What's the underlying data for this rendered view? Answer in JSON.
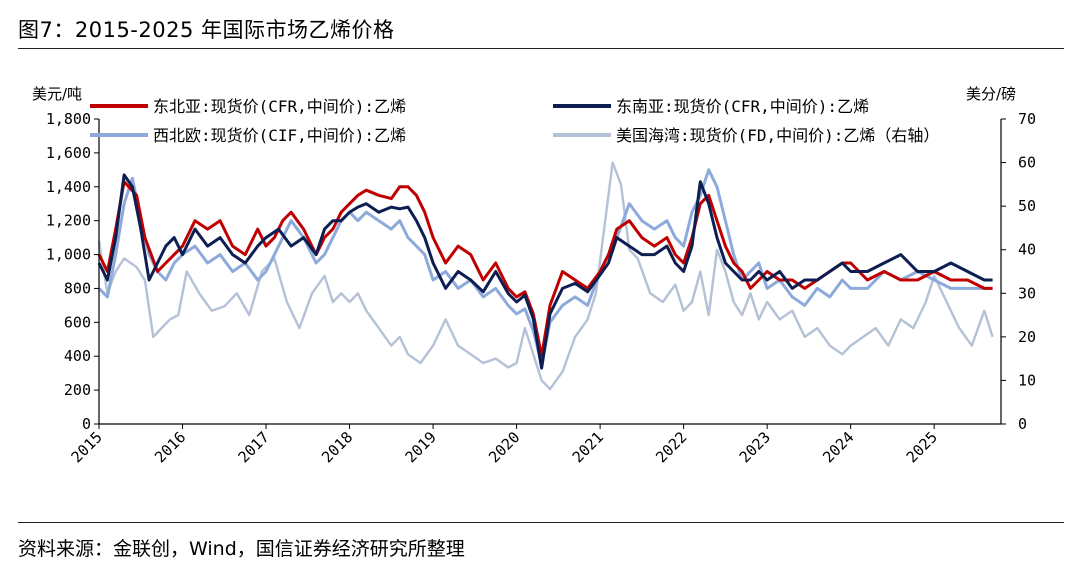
{
  "figure": {
    "title": "图7：2015-2025 年国际市场乙烯价格",
    "source": "资料来源：金联创，Wind，国信证券经济研究所整理"
  },
  "chart_data": {
    "type": "line",
    "left_axis": {
      "unit_label": "美元/吨",
      "range": [
        0,
        1800
      ],
      "ticks": [
        0,
        200,
        400,
        600,
        800,
        1000,
        1200,
        1400,
        1600,
        1800
      ],
      "tick_labels": [
        "0",
        "200",
        "400",
        "600",
        "800",
        "1,000",
        "1,200",
        "1,400",
        "1,600",
        "1,800"
      ]
    },
    "right_axis": {
      "unit_label": "美分/磅",
      "range": [
        0,
        70
      ],
      "ticks": [
        0,
        10,
        20,
        30,
        40,
        50,
        60,
        70
      ],
      "tick_labels": [
        "0",
        "10",
        "20",
        "30",
        "40",
        "50",
        "60",
        "70"
      ]
    },
    "x_axis": {
      "range": [
        2015,
        2025.8
      ],
      "ticks": [
        2015,
        2016,
        2017,
        2018,
        2019,
        2020,
        2021,
        2022,
        2023,
        2024,
        2025
      ],
      "tick_labels": [
        "2015",
        "2016",
        "2017",
        "2018",
        "2019",
        "2020",
        "2021",
        "2022",
        "2023",
        "2024",
        "2025"
      ]
    },
    "grid": false,
    "legend_placement": "top",
    "series": [
      {
        "name": "东北亚:现货价(CFR,中间价):乙烯",
        "axis": "left",
        "color": "#c00000",
        "x": [
          2015.0,
          2015.1,
          2015.2,
          2015.3,
          2015.45,
          2015.55,
          2015.7,
          2015.8,
          2015.9,
          2016.0,
          2016.15,
          2016.3,
          2016.45,
          2016.6,
          2016.75,
          2016.9,
          2017.0,
          2017.1,
          2017.2,
          2017.3,
          2017.45,
          2017.6,
          2017.7,
          2017.8,
          2017.9,
          2018.0,
          2018.1,
          2018.2,
          2018.35,
          2018.5,
          2018.6,
          2018.7,
          2018.8,
          2018.9,
          2019.0,
          2019.15,
          2019.3,
          2019.45,
          2019.6,
          2019.75,
          2019.9,
          2020.0,
          2020.1,
          2020.2,
          2020.3,
          2020.4,
          2020.55,
          2020.7,
          2020.85,
          2021.0,
          2021.1,
          2021.2,
          2021.35,
          2021.5,
          2021.65,
          2021.8,
          2021.9,
          2022.0,
          2022.1,
          2022.2,
          2022.3,
          2022.4,
          2022.5,
          2022.6,
          2022.7,
          2022.8,
          2022.9,
          2023.0,
          2023.15,
          2023.3,
          2023.45,
          2023.6,
          2023.75,
          2023.9,
          2024.0,
          2024.2,
          2024.4,
          2024.6,
          2024.8,
          2025.0,
          2025.2,
          2025.4,
          2025.6,
          2025.7
        ],
        "values": [
          1000,
          900,
          1150,
          1430,
          1350,
          1100,
          900,
          950,
          1000,
          1050,
          1200,
          1150,
          1200,
          1050,
          1000,
          1150,
          1050,
          1100,
          1200,
          1250,
          1150,
          1000,
          1100,
          1150,
          1250,
          1300,
          1350,
          1380,
          1350,
          1330,
          1400,
          1400,
          1350,
          1250,
          1100,
          950,
          1050,
          1000,
          850,
          950,
          800,
          750,
          780,
          650,
          400,
          700,
          900,
          850,
          800,
          900,
          1000,
          1150,
          1200,
          1100,
          1050,
          1100,
          1000,
          950,
          1100,
          1300,
          1350,
          1200,
          1050,
          950,
          900,
          800,
          850,
          900,
          850,
          850,
          800,
          850,
          900,
          950,
          950,
          850,
          900,
          850,
          850,
          900,
          850,
          850,
          800,
          800
        ]
      },
      {
        "name": "东南亚:现货价(CFR,中间价):乙烯",
        "axis": "left",
        "color": "#0d1f52",
        "x": [
          2015.0,
          2015.1,
          2015.2,
          2015.3,
          2015.4,
          2015.5,
          2015.6,
          2015.7,
          2015.8,
          2015.9,
          2016.0,
          2016.15,
          2016.3,
          2016.45,
          2016.6,
          2016.75,
          2016.9,
          2017.0,
          2017.15,
          2017.3,
          2017.45,
          2017.6,
          2017.7,
          2017.8,
          2017.9,
          2018.0,
          2018.1,
          2018.2,
          2018.35,
          2018.5,
          2018.6,
          2018.7,
          2018.8,
          2018.9,
          2019.0,
          2019.15,
          2019.3,
          2019.45,
          2019.6,
          2019.75,
          2019.9,
          2020.0,
          2020.1,
          2020.2,
          2020.3,
          2020.4,
          2020.55,
          2020.7,
          2020.85,
          2021.0,
          2021.1,
          2021.2,
          2021.35,
          2021.5,
          2021.65,
          2021.8,
          2021.9,
          2022.0,
          2022.1,
          2022.2,
          2022.3,
          2022.4,
          2022.5,
          2022.6,
          2022.7,
          2022.8,
          2022.9,
          2023.0,
          2023.15,
          2023.3,
          2023.45,
          2023.6,
          2023.75,
          2023.9,
          2024.0,
          2024.2,
          2024.4,
          2024.6,
          2024.8,
          2025.0,
          2025.2,
          2025.4,
          2025.6,
          2025.7
        ],
        "values": [
          950,
          850,
          1100,
          1470,
          1400,
          1150,
          850,
          950,
          1050,
          1100,
          1000,
          1150,
          1050,
          1100,
          1000,
          950,
          1050,
          1100,
          1150,
          1050,
          1100,
          1000,
          1150,
          1200,
          1200,
          1250,
          1280,
          1300,
          1250,
          1280,
          1270,
          1280,
          1200,
          1100,
          950,
          800,
          900,
          850,
          780,
          900,
          770,
          720,
          760,
          620,
          330,
          650,
          800,
          830,
          780,
          880,
          950,
          1100,
          1050,
          1000,
          1000,
          1050,
          950,
          900,
          1050,
          1430,
          1300,
          1100,
          950,
          900,
          850,
          850,
          900,
          850,
          900,
          800,
          850,
          850,
          900,
          950,
          900,
          900,
          950,
          1000,
          900,
          900,
          950,
          900,
          850,
          850
        ]
      },
      {
        "name": "西北欧:现货价(CIF,中间价):乙烯",
        "axis": "left",
        "color": "#8eaadb",
        "x": [
          2015.0,
          2015.1,
          2015.2,
          2015.3,
          2015.4,
          2015.5,
          2015.6,
          2015.7,
          2015.8,
          2015.9,
          2016.0,
          2016.15,
          2016.3,
          2016.45,
          2016.6,
          2016.75,
          2016.9,
          2017.0,
          2017.15,
          2017.3,
          2017.45,
          2017.6,
          2017.7,
          2017.8,
          2017.9,
          2018.0,
          2018.1,
          2018.2,
          2018.35,
          2018.5,
          2018.6,
          2018.7,
          2018.8,
          2018.9,
          2019.0,
          2019.15,
          2019.3,
          2019.45,
          2019.6,
          2019.75,
          2019.9,
          2020.0,
          2020.1,
          2020.2,
          2020.3,
          2020.4,
          2020.55,
          2020.7,
          2020.85,
          2021.0,
          2021.1,
          2021.2,
          2021.35,
          2021.5,
          2021.65,
          2021.8,
          2021.9,
          2022.0,
          2022.1,
          2022.2,
          2022.3,
          2022.4,
          2022.5,
          2022.6,
          2022.7,
          2022.8,
          2022.9,
          2023.0,
          2023.15,
          2023.3,
          2023.45,
          2023.6,
          2023.75,
          2023.9,
          2024.0,
          2024.2,
          2024.4,
          2024.6,
          2024.8,
          2025.0,
          2025.2,
          2025.4,
          2025.6,
          2025.7
        ],
        "values": [
          800,
          750,
          1000,
          1300,
          1450,
          1200,
          1000,
          900,
          850,
          950,
          1000,
          1050,
          950,
          1000,
          900,
          950,
          850,
          900,
          1050,
          1200,
          1100,
          950,
          1000,
          1100,
          1200,
          1250,
          1200,
          1250,
          1200,
          1150,
          1200,
          1100,
          1050,
          1000,
          850,
          900,
          800,
          850,
          750,
          800,
          700,
          650,
          680,
          550,
          350,
          600,
          700,
          750,
          700,
          900,
          1000,
          1100,
          1300,
          1200,
          1150,
          1200,
          1100,
          1050,
          1250,
          1350,
          1500,
          1400,
          1200,
          1000,
          850,
          900,
          950,
          800,
          850,
          750,
          700,
          800,
          750,
          850,
          800,
          800,
          900,
          850,
          900,
          850,
          800,
          800,
          800,
          800
        ]
      },
      {
        "name": "美国海湾:现货价(FD,中间价):乙烯（右轴）",
        "axis": "right",
        "color": "#b4c1d6",
        "x": [
          2015.0,
          2015.1,
          2015.2,
          2015.3,
          2015.45,
          2015.55,
          2015.65,
          2015.75,
          2015.85,
          2015.95,
          2016.05,
          2016.2,
          2016.35,
          2016.5,
          2016.65,
          2016.8,
          2016.95,
          2017.1,
          2017.25,
          2017.4,
          2017.55,
          2017.7,
          2017.8,
          2017.9,
          2018.0,
          2018.1,
          2018.2,
          2018.35,
          2018.5,
          2018.6,
          2018.7,
          2018.85,
          2019.0,
          2019.15,
          2019.3,
          2019.45,
          2019.6,
          2019.75,
          2019.9,
          2020.0,
          2020.1,
          2020.2,
          2020.3,
          2020.4,
          2020.55,
          2020.7,
          2020.85,
          2020.95,
          2021.05,
          2021.15,
          2021.25,
          2021.35,
          2021.45,
          2021.6,
          2021.75,
          2021.9,
          2022.0,
          2022.1,
          2022.2,
          2022.3,
          2022.4,
          2022.5,
          2022.6,
          2022.7,
          2022.8,
          2022.9,
          2023.0,
          2023.15,
          2023.3,
          2023.45,
          2023.6,
          2023.75,
          2023.9,
          2024.0,
          2024.15,
          2024.3,
          2024.45,
          2024.6,
          2024.75,
          2024.9,
          2025.0,
          2025.15,
          2025.3,
          2025.45,
          2025.6,
          2025.7
        ],
        "values": [
          42,
          30,
          35,
          38,
          36,
          33,
          20,
          22,
          24,
          25,
          35,
          30,
          26,
          27,
          30,
          25,
          35,
          38,
          28,
          22,
          30,
          34,
          28,
          30,
          28,
          30,
          26,
          22,
          18,
          20,
          16,
          14,
          18,
          24,
          18,
          16,
          14,
          15,
          13,
          14,
          22,
          16,
          10,
          8,
          12,
          20,
          24,
          30,
          45,
          60,
          55,
          40,
          38,
          30,
          28,
          32,
          26,
          28,
          35,
          25,
          40,
          35,
          28,
          25,
          30,
          24,
          28,
          24,
          26,
          20,
          22,
          18,
          16,
          18,
          20,
          22,
          18,
          24,
          22,
          28,
          34,
          28,
          22,
          18,
          26,
          20
        ]
      }
    ]
  }
}
